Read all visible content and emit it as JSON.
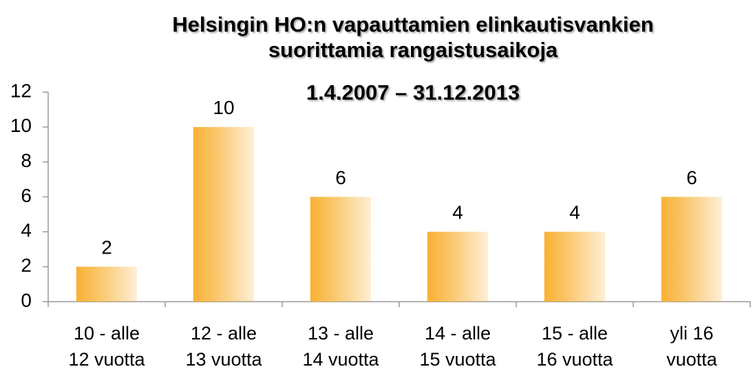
{
  "chart_data": {
    "type": "bar",
    "title": [
      "Helsingin HO:n vapauttamien elinkautisvankien",
      "suorittamia rangaistusaikoja",
      "1.4.2007 – 31.12.2013"
    ],
    "categories": [
      [
        "10 - alle",
        "12 vuotta"
      ],
      [
        "12 - alle",
        "13 vuotta"
      ],
      [
        "13 - alle",
        "14 vuotta"
      ],
      [
        "14 - alle",
        "15 vuotta"
      ],
      [
        "15 - alle",
        "16 vuotta"
      ],
      [
        "yli 16",
        "vuotta"
      ]
    ],
    "values": [
      2,
      10,
      6,
      4,
      4,
      6
    ],
    "color": "#f8b133",
    "ylim": [
      0,
      12
    ],
    "yticks": [
      0,
      2,
      4,
      6,
      8,
      10,
      12
    ],
    "grid": false
  }
}
